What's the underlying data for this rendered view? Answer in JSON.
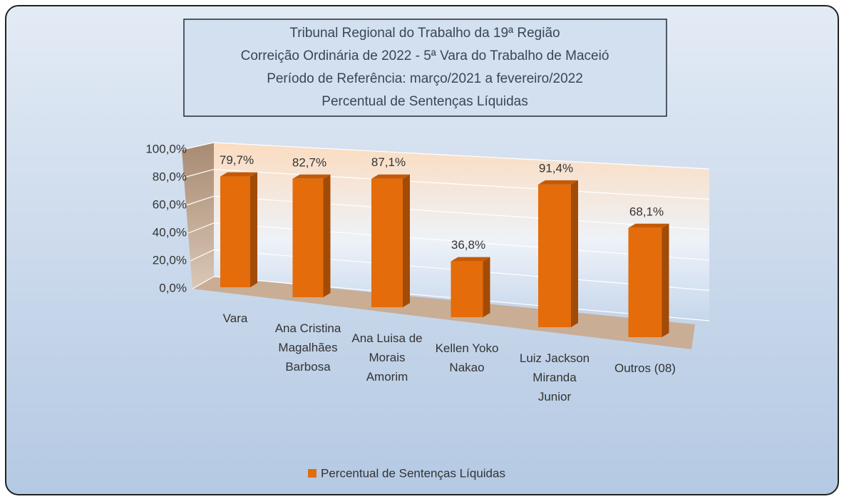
{
  "chart_data": {
    "type": "bar3d",
    "title": [
      "Tribunal Regional do Trabalho da 19ª Região",
      "Correição Ordinária de 2022 - 5ª Vara do Trabalho de Maceió",
      "Período de Referência: março/2021 a fevereiro/2022",
      "Percentual de Sentenças Líquidas"
    ],
    "categories": [
      "Vara",
      "Ana Cristina Magalhães Barbosa",
      "Ana Luisa de Morais Amorim",
      "Kellen Yoko Nakao",
      "Luiz Jackson Miranda Junior",
      "Outros (08)"
    ],
    "series": [
      {
        "name": "Percentual de Sentenças Líquidas",
        "color": "#e46c0a",
        "values": [
          79.7,
          82.7,
          87.1,
          36.8,
          91.4,
          68.1
        ],
        "value_labels": [
          "79,7%",
          "82,7%",
          "87,1%",
          "36,8%",
          "91,4%",
          "68,1%"
        ]
      }
    ],
    "ylim": [
      0,
      100
    ],
    "yticks": [
      {
        "value": 0,
        "label": "0,0%"
      },
      {
        "value": 20,
        "label": "20,0%"
      },
      {
        "value": 40,
        "label": "40,0%"
      },
      {
        "value": 60,
        "label": "60,0%"
      },
      {
        "value": 80,
        "label": "80,0%"
      },
      {
        "value": 100,
        "label": "100,0%"
      }
    ],
    "grid": true,
    "legend": "bottom"
  }
}
